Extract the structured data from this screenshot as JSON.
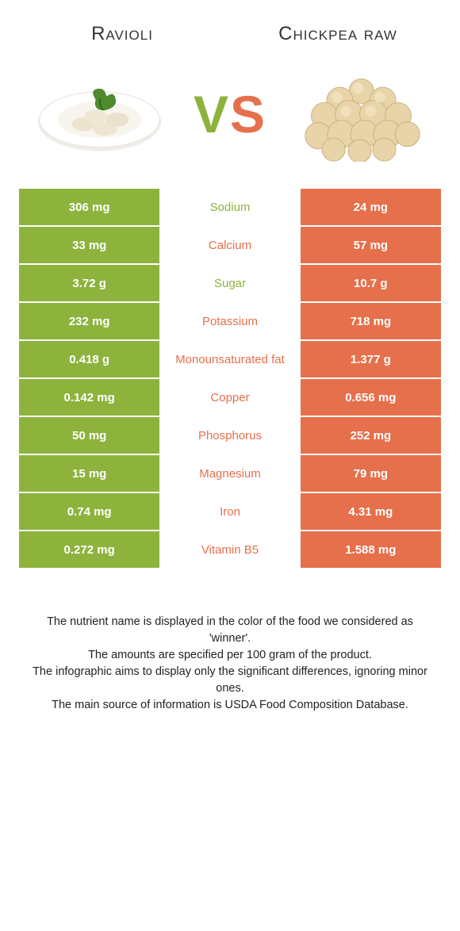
{
  "colors": {
    "left": "#8db33d",
    "right": "#e5704b",
    "bg": "#ffffff",
    "text": "#333333"
  },
  "foods": {
    "left": "Ravioli",
    "right": "Chickpea raw"
  },
  "vs": {
    "v": "V",
    "s": "S"
  },
  "rows": [
    {
      "left": "306 mg",
      "label": "Sodium",
      "right": "24 mg",
      "winner": "left"
    },
    {
      "left": "33 mg",
      "label": "Calcium",
      "right": "57 mg",
      "winner": "right"
    },
    {
      "left": "3.72 g",
      "label": "Sugar",
      "right": "10.7 g",
      "winner": "left"
    },
    {
      "left": "232 mg",
      "label": "Potassium",
      "right": "718 mg",
      "winner": "right"
    },
    {
      "left": "0.418 g",
      "label": "Monounsaturated fat",
      "right": "1.377 g",
      "winner": "right"
    },
    {
      "left": "0.142 mg",
      "label": "Copper",
      "right": "0.656 mg",
      "winner": "right"
    },
    {
      "left": "50 mg",
      "label": "Phosphorus",
      "right": "252 mg",
      "winner": "right"
    },
    {
      "left": "15 mg",
      "label": "Magnesium",
      "right": "79 mg",
      "winner": "right"
    },
    {
      "left": "0.74 mg",
      "label": "Iron",
      "right": "4.31 mg",
      "winner": "right"
    },
    {
      "left": "0.272 mg",
      "label": "Vitamin B5",
      "right": "1.588 mg",
      "winner": "right"
    }
  ],
  "footer": {
    "l1": "The nutrient name is displayed in the color of the food we considered as 'winner'.",
    "l2": "The amounts are specified per 100 gram of the product.",
    "l3": "The infographic aims to display only the significant differences, ignoring minor ones.",
    "l4": "The main source of information is USDA Food Composition Database."
  }
}
